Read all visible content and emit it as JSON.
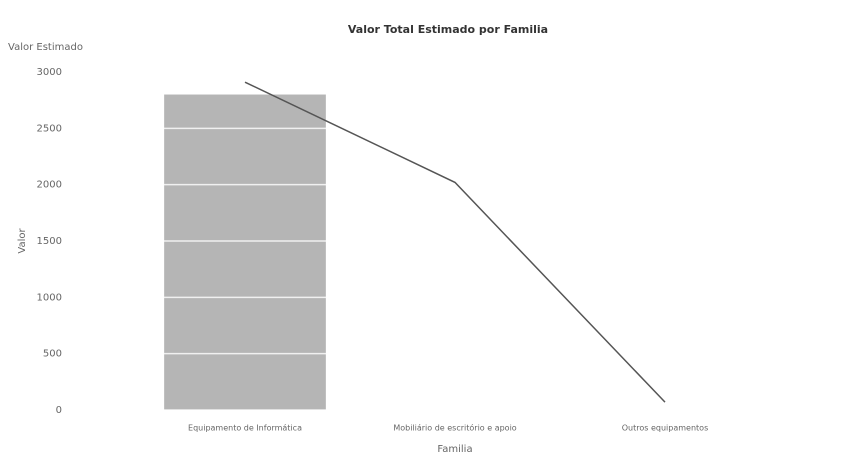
{
  "chart_data": {
    "type": "bar-line",
    "title": "Valor Total Estimado por Familia",
    "corner_label": "Valor Estimado",
    "y_label": "Valor",
    "x_label": "Familia",
    "categories": [
      "Equipamento de Informática",
      "Mobiliário de escritório e apoio",
      "Outros equipamentos"
    ],
    "series": [
      {
        "kind": "bar",
        "color": "#b5b5b5",
        "values": [
          2800,
          0,
          0
        ]
      },
      {
        "kind": "line",
        "color": "#555555",
        "values": [
          2910,
          2020,
          70
        ]
      }
    ],
    "ylim": [
      0,
      3000
    ],
    "yticks": [
      0,
      500,
      1000,
      1500,
      2000,
      2500,
      3000
    ],
    "grid": true
  }
}
